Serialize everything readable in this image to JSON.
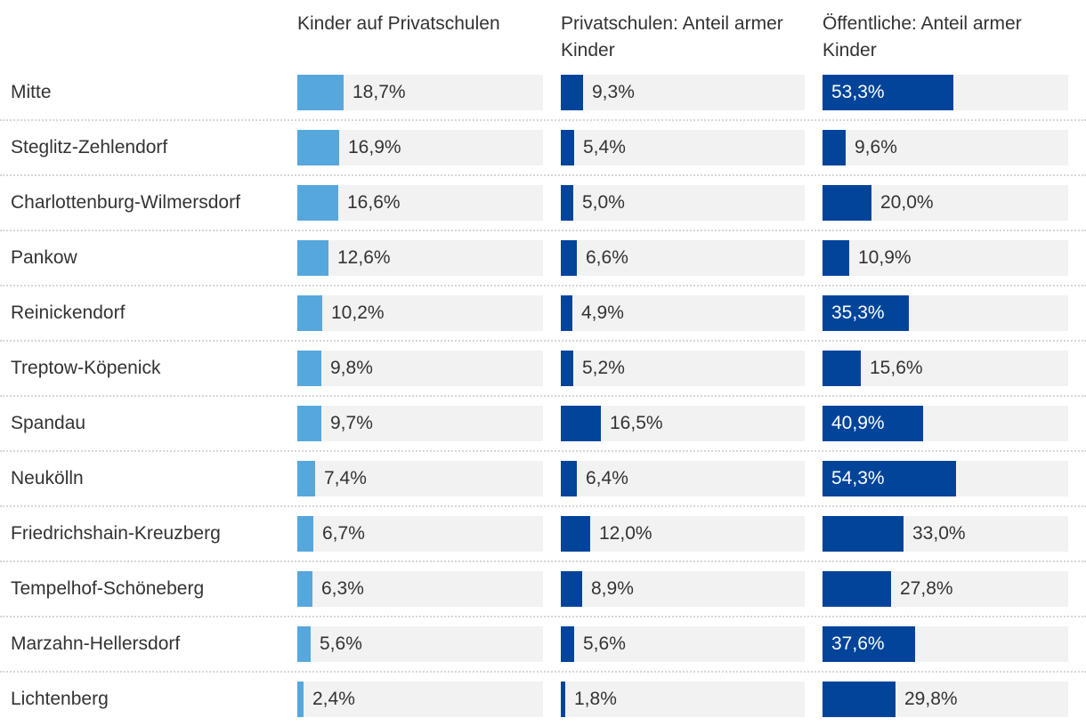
{
  "chart_data": {
    "type": "table",
    "columns": [
      "Kinder auf Privatschulen",
      "Privatschulen: Anteil armer Kinder",
      "Öffentliche: Anteil armer Kinder"
    ],
    "xlim": [
      0,
      100
    ],
    "unit": "%",
    "colors": [
      "#56a7dc",
      "#01449a",
      "#01449a"
    ],
    "background_color": "#f2f2f2",
    "rows": [
      {
        "label": "Mitte",
        "values": [
          18.7,
          9.3,
          53.3
        ],
        "display": [
          "18,7%",
          "9,3%",
          "53,3%"
        ]
      },
      {
        "label": "Steglitz-Zehlendorf",
        "values": [
          16.9,
          5.4,
          9.6
        ],
        "display": [
          "16,9%",
          "5,4%",
          "9,6%"
        ]
      },
      {
        "label": "Charlottenburg-Wilmersdorf",
        "values": [
          16.6,
          5.0,
          20.0
        ],
        "display": [
          "16,6%",
          "5,0%",
          "20,0%"
        ]
      },
      {
        "label": "Pankow",
        "values": [
          12.6,
          6.6,
          10.9
        ],
        "display": [
          "12,6%",
          "6,6%",
          "10,9%"
        ]
      },
      {
        "label": "Reinickendorf",
        "values": [
          10.2,
          4.9,
          35.3
        ],
        "display": [
          "10,2%",
          "4,9%",
          "35,3%"
        ]
      },
      {
        "label": "Treptow-Köpenick",
        "values": [
          9.8,
          5.2,
          15.6
        ],
        "display": [
          "9,8%",
          "5,2%",
          "15,6%"
        ]
      },
      {
        "label": "Spandau",
        "values": [
          9.7,
          16.5,
          40.9
        ],
        "display": [
          "9,7%",
          "16,5%",
          "40,9%"
        ]
      },
      {
        "label": "Neukölln",
        "values": [
          7.4,
          6.4,
          54.3
        ],
        "display": [
          "7,4%",
          "6,4%",
          "54,3%"
        ]
      },
      {
        "label": "Friedrichshain-Kreuzberg",
        "values": [
          6.7,
          12.0,
          33.0
        ],
        "display": [
          "6,7%",
          "12,0%",
          "33,0%"
        ]
      },
      {
        "label": "Tempelhof-Schöneberg",
        "values": [
          6.3,
          8.9,
          27.8
        ],
        "display": [
          "6,3%",
          "8,9%",
          "27,8%"
        ]
      },
      {
        "label": "Marzahn-Hellersdorf",
        "values": [
          5.6,
          5.6,
          37.6
        ],
        "display": [
          "5,6%",
          "5,6%",
          "37,6%"
        ]
      },
      {
        "label": "Lichtenberg",
        "values": [
          2.4,
          1.8,
          29.8
        ],
        "display": [
          "2,4%",
          "1,8%",
          "29,8%"
        ]
      }
    ]
  }
}
